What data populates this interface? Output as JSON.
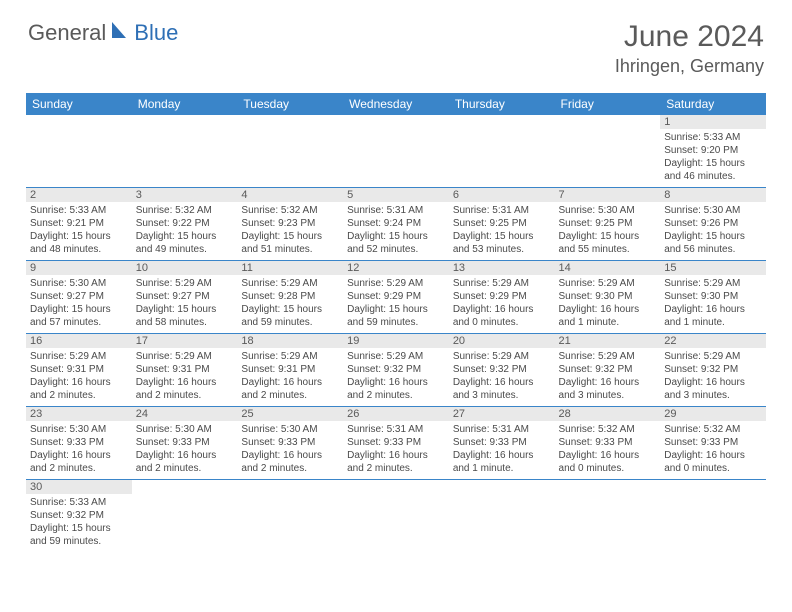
{
  "logo": {
    "text1": "General",
    "text2": "Blue",
    "color1": "#5a5a5a",
    "color2": "#2e6fb5",
    "sail_color": "#2e6fb5"
  },
  "header": {
    "month_title": "June 2024",
    "location": "Ihringen, Germany"
  },
  "style": {
    "header_bg": "#3a85c9",
    "header_text": "#ffffff",
    "daybar_bg": "#e9e9e9",
    "grid_line": "#3a85c9",
    "body_text": "#4a4a4a"
  },
  "weekdays": [
    "Sunday",
    "Monday",
    "Tuesday",
    "Wednesday",
    "Thursday",
    "Friday",
    "Saturday"
  ],
  "weeks": [
    [
      null,
      null,
      null,
      null,
      null,
      null,
      {
        "n": "1",
        "sunrise": "Sunrise: 5:33 AM",
        "sunset": "Sunset: 9:20 PM",
        "daylight": "Daylight: 15 hours and 46 minutes."
      }
    ],
    [
      {
        "n": "2",
        "sunrise": "Sunrise: 5:33 AM",
        "sunset": "Sunset: 9:21 PM",
        "daylight": "Daylight: 15 hours and 48 minutes."
      },
      {
        "n": "3",
        "sunrise": "Sunrise: 5:32 AM",
        "sunset": "Sunset: 9:22 PM",
        "daylight": "Daylight: 15 hours and 49 minutes."
      },
      {
        "n": "4",
        "sunrise": "Sunrise: 5:32 AM",
        "sunset": "Sunset: 9:23 PM",
        "daylight": "Daylight: 15 hours and 51 minutes."
      },
      {
        "n": "5",
        "sunrise": "Sunrise: 5:31 AM",
        "sunset": "Sunset: 9:24 PM",
        "daylight": "Daylight: 15 hours and 52 minutes."
      },
      {
        "n": "6",
        "sunrise": "Sunrise: 5:31 AM",
        "sunset": "Sunset: 9:25 PM",
        "daylight": "Daylight: 15 hours and 53 minutes."
      },
      {
        "n": "7",
        "sunrise": "Sunrise: 5:30 AM",
        "sunset": "Sunset: 9:25 PM",
        "daylight": "Daylight: 15 hours and 55 minutes."
      },
      {
        "n": "8",
        "sunrise": "Sunrise: 5:30 AM",
        "sunset": "Sunset: 9:26 PM",
        "daylight": "Daylight: 15 hours and 56 minutes."
      }
    ],
    [
      {
        "n": "9",
        "sunrise": "Sunrise: 5:30 AM",
        "sunset": "Sunset: 9:27 PM",
        "daylight": "Daylight: 15 hours and 57 minutes."
      },
      {
        "n": "10",
        "sunrise": "Sunrise: 5:29 AM",
        "sunset": "Sunset: 9:27 PM",
        "daylight": "Daylight: 15 hours and 58 minutes."
      },
      {
        "n": "11",
        "sunrise": "Sunrise: 5:29 AM",
        "sunset": "Sunset: 9:28 PM",
        "daylight": "Daylight: 15 hours and 59 minutes."
      },
      {
        "n": "12",
        "sunrise": "Sunrise: 5:29 AM",
        "sunset": "Sunset: 9:29 PM",
        "daylight": "Daylight: 15 hours and 59 minutes."
      },
      {
        "n": "13",
        "sunrise": "Sunrise: 5:29 AM",
        "sunset": "Sunset: 9:29 PM",
        "daylight": "Daylight: 16 hours and 0 minutes."
      },
      {
        "n": "14",
        "sunrise": "Sunrise: 5:29 AM",
        "sunset": "Sunset: 9:30 PM",
        "daylight": "Daylight: 16 hours and 1 minute."
      },
      {
        "n": "15",
        "sunrise": "Sunrise: 5:29 AM",
        "sunset": "Sunset: 9:30 PM",
        "daylight": "Daylight: 16 hours and 1 minute."
      }
    ],
    [
      {
        "n": "16",
        "sunrise": "Sunrise: 5:29 AM",
        "sunset": "Sunset: 9:31 PM",
        "daylight": "Daylight: 16 hours and 2 minutes."
      },
      {
        "n": "17",
        "sunrise": "Sunrise: 5:29 AM",
        "sunset": "Sunset: 9:31 PM",
        "daylight": "Daylight: 16 hours and 2 minutes."
      },
      {
        "n": "18",
        "sunrise": "Sunrise: 5:29 AM",
        "sunset": "Sunset: 9:31 PM",
        "daylight": "Daylight: 16 hours and 2 minutes."
      },
      {
        "n": "19",
        "sunrise": "Sunrise: 5:29 AM",
        "sunset": "Sunset: 9:32 PM",
        "daylight": "Daylight: 16 hours and 2 minutes."
      },
      {
        "n": "20",
        "sunrise": "Sunrise: 5:29 AM",
        "sunset": "Sunset: 9:32 PM",
        "daylight": "Daylight: 16 hours and 3 minutes."
      },
      {
        "n": "21",
        "sunrise": "Sunrise: 5:29 AM",
        "sunset": "Sunset: 9:32 PM",
        "daylight": "Daylight: 16 hours and 3 minutes."
      },
      {
        "n": "22",
        "sunrise": "Sunrise: 5:29 AM",
        "sunset": "Sunset: 9:32 PM",
        "daylight": "Daylight: 16 hours and 3 minutes."
      }
    ],
    [
      {
        "n": "23",
        "sunrise": "Sunrise: 5:30 AM",
        "sunset": "Sunset: 9:33 PM",
        "daylight": "Daylight: 16 hours and 2 minutes."
      },
      {
        "n": "24",
        "sunrise": "Sunrise: 5:30 AM",
        "sunset": "Sunset: 9:33 PM",
        "daylight": "Daylight: 16 hours and 2 minutes."
      },
      {
        "n": "25",
        "sunrise": "Sunrise: 5:30 AM",
        "sunset": "Sunset: 9:33 PM",
        "daylight": "Daylight: 16 hours and 2 minutes."
      },
      {
        "n": "26",
        "sunrise": "Sunrise: 5:31 AM",
        "sunset": "Sunset: 9:33 PM",
        "daylight": "Daylight: 16 hours and 2 minutes."
      },
      {
        "n": "27",
        "sunrise": "Sunrise: 5:31 AM",
        "sunset": "Sunset: 9:33 PM",
        "daylight": "Daylight: 16 hours and 1 minute."
      },
      {
        "n": "28",
        "sunrise": "Sunrise: 5:32 AM",
        "sunset": "Sunset: 9:33 PM",
        "daylight": "Daylight: 16 hours and 0 minutes."
      },
      {
        "n": "29",
        "sunrise": "Sunrise: 5:32 AM",
        "sunset": "Sunset: 9:33 PM",
        "daylight": "Daylight: 16 hours and 0 minutes."
      }
    ],
    [
      {
        "n": "30",
        "sunrise": "Sunrise: 5:33 AM",
        "sunset": "Sunset: 9:32 PM",
        "daylight": "Daylight: 15 hours and 59 minutes."
      },
      null,
      null,
      null,
      null,
      null,
      null
    ]
  ]
}
